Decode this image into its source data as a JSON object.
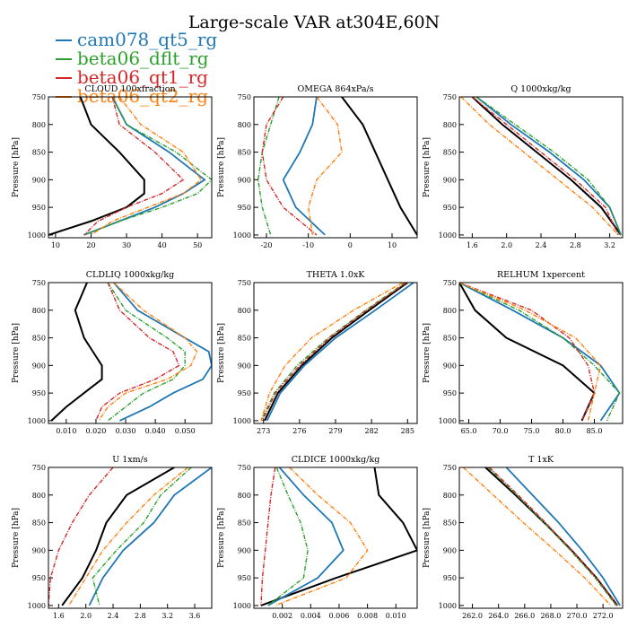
{
  "title": "Large-scale VAR at304E,60N",
  "legend": [
    {
      "name": "cam078_qt5_rg",
      "color": "#1f77b4"
    },
    {
      "name": "beta06_dflt_rg",
      "color": "#2ca02c"
    },
    {
      "name": "beta06_qt1_rg",
      "color": "#d62728"
    },
    {
      "name": "beta06_qt2_rg",
      "color": "#ff7f0e"
    }
  ],
  "series_colors": [
    "#000000",
    "#1f77b4",
    "#2ca02c",
    "#d62728",
    "#ff7f0e"
  ],
  "chart_data": [
    {
      "type": "line",
      "title": "CLOUD 100xfraction",
      "ylabel": "Pressure [hPa]",
      "xlim": [
        8,
        54
      ],
      "ylim": [
        1005,
        750
      ],
      "xticks": [
        10,
        20,
        30,
        40,
        50
      ],
      "xtick_labels": [
        "10",
        "20",
        "30",
        "40",
        "50"
      ],
      "yticks": [
        750,
        800,
        850,
        900,
        950,
        1000
      ],
      "ytick_labels": [
        "750",
        "800",
        "850",
        "900",
        "950",
        "1000"
      ],
      "y": [
        750,
        800,
        850,
        900,
        925,
        950,
        975,
        1000
      ],
      "series": [
        {
          "values": [
            17,
            20,
            28,
            35,
            35,
            30,
            20,
            8
          ]
        },
        {
          "values": [
            26,
            30,
            42,
            52,
            46,
            38,
            28,
            18
          ]
        },
        {
          "values": [
            26,
            30,
            44,
            54,
            50,
            40,
            28,
            18
          ]
        },
        {
          "values": [
            26,
            28,
            38,
            46,
            40,
            30,
            22,
            18
          ]
        },
        {
          "values": [
            28,
            34,
            46,
            51,
            46,
            36,
            26,
            20
          ]
        }
      ]
    },
    {
      "type": "line",
      "title": "OMEGA 864xPa/s",
      "ylabel": "Pressure [hPa]",
      "xlim": [
        -23,
        16
      ],
      "ylim": [
        1005,
        750
      ],
      "xticks": [
        -20,
        -10,
        0,
        10
      ],
      "xtick_labels": [
        "-20",
        "-10",
        "0",
        "10"
      ],
      "yticks": [
        750,
        800,
        850,
        900,
        950,
        1000
      ],
      "ytick_labels": [
        "750",
        "800",
        "850",
        "900",
        "950",
        "1000"
      ],
      "y": [
        750,
        800,
        850,
        900,
        950,
        1000
      ],
      "series": [
        {
          "values": [
            -2,
            3,
            6,
            9,
            12,
            16
          ]
        },
        {
          "values": [
            -8,
            -9,
            -12,
            -16,
            -13,
            -6
          ]
        },
        {
          "values": [
            -17,
            -19,
            -21,
            -22,
            -21,
            -19
          ]
        },
        {
          "values": [
            -16,
            -20,
            -21,
            -20,
            -16,
            -8
          ]
        },
        {
          "values": [
            -8,
            -3,
            -2,
            -8,
            -10,
            -9
          ]
        }
      ]
    },
    {
      "type": "line",
      "title": "Q 1000xkg/kg",
      "ylabel": "Pressure [hPa]",
      "xlim": [
        1.45,
        3.35
      ],
      "ylim": [
        1005,
        750
      ],
      "xticks": [
        1.6,
        2.0,
        2.4,
        2.8,
        3.2
      ],
      "xtick_labels": [
        "1.6",
        "2.0",
        "2.4",
        "2.8",
        "3.2"
      ],
      "yticks": [
        750,
        800,
        850,
        900,
        950,
        1000
      ],
      "ytick_labels": [
        "750",
        "800",
        "850",
        "900",
        "950",
        "1000"
      ],
      "y": [
        750,
        800,
        850,
        900,
        950,
        1000
      ],
      "series": [
        {
          "values": [
            1.6,
            1.95,
            2.35,
            2.75,
            3.1,
            3.33
          ]
        },
        {
          "values": [
            1.65,
            2.05,
            2.5,
            2.9,
            3.2,
            3.33
          ]
        },
        {
          "values": [
            1.65,
            2.1,
            2.55,
            2.95,
            3.2,
            3.33
          ]
        },
        {
          "values": [
            1.6,
            2.0,
            2.4,
            2.8,
            3.15,
            3.3
          ]
        },
        {
          "values": [
            1.47,
            1.8,
            2.2,
            2.6,
            3.0,
            3.3
          ]
        }
      ]
    },
    {
      "type": "line",
      "title": "CLDLIQ 1000xkg/kg",
      "ylabel": "Pressure [hPa]",
      "xlim": [
        0.004,
        0.059
      ],
      "ylim": [
        1005,
        750
      ],
      "xticks": [
        0.01,
        0.02,
        0.03,
        0.04,
        0.05
      ],
      "xtick_labels": [
        "0.010",
        "0.020",
        "0.030",
        "0.040",
        "0.050"
      ],
      "yticks": [
        750,
        800,
        850,
        900,
        950,
        1000
      ],
      "ytick_labels": [
        "750",
        "800",
        "850",
        "900",
        "950",
        "1000"
      ],
      "y": [
        750,
        800,
        850,
        875,
        900,
        925,
        950,
        975,
        1000
      ],
      "series": [
        {
          "values": [
            0.017,
            0.013,
            0.016,
            0.019,
            0.022,
            0.022,
            0.016,
            0.01,
            0.005
          ]
        },
        {
          "values": [
            0.026,
            0.034,
            0.05,
            0.058,
            0.059,
            0.056,
            0.046,
            0.038,
            0.028
          ]
        },
        {
          "values": [
            0.024,
            0.03,
            0.044,
            0.05,
            0.05,
            0.046,
            0.036,
            0.03,
            0.024
          ]
        },
        {
          "values": [
            0.024,
            0.028,
            0.038,
            0.046,
            0.048,
            0.04,
            0.028,
            0.022,
            0.02
          ]
        },
        {
          "values": [
            0.026,
            0.036,
            0.05,
            0.054,
            0.052,
            0.044,
            0.03,
            0.024,
            0.021
          ]
        }
      ]
    },
    {
      "type": "line",
      "title": "THETA 1.0xK",
      "ylabel": "Pressure [hPa]",
      "xlim": [
        272.2,
        285.8
      ],
      "ylim": [
        1005,
        750
      ],
      "xticks": [
        273,
        276,
        279,
        282,
        285
      ],
      "xtick_labels": [
        "273",
        "276",
        "279",
        "282",
        "285"
      ],
      "yticks": [
        750,
        800,
        850,
        900,
        950,
        1000
      ],
      "ytick_labels": [
        "750",
        "800",
        "850",
        "900",
        "950",
        "1000"
      ],
      "y": [
        750,
        800,
        850,
        900,
        950,
        1000
      ],
      "series": [
        {
          "values": [
            285.0,
            281.8,
            278.7,
            276.2,
            274.2,
            273.1
          ]
        },
        {
          "values": [
            285.5,
            282.3,
            279.0,
            276.4,
            274.4,
            273.3
          ]
        },
        {
          "values": [
            284.8,
            281.5,
            278.4,
            275.8,
            273.9,
            272.8
          ]
        },
        {
          "values": [
            284.9,
            281.6,
            278.5,
            276.0,
            274.0,
            272.9
          ]
        },
        {
          "values": [
            284.6,
            280.5,
            277.0,
            274.8,
            273.5,
            272.8
          ]
        }
      ]
    },
    {
      "type": "line",
      "title": "RELHUM 1xpercent",
      "ylabel": "Pressure [hPa]",
      "xlim": [
        63.5,
        89.5
      ],
      "ylim": [
        1005,
        750
      ],
      "xticks": [
        65,
        70,
        75,
        80,
        85
      ],
      "xtick_labels": [
        "65.0",
        "70.0",
        "75.0",
        "80.0",
        "85.0"
      ],
      "yticks": [
        750,
        800,
        850,
        900,
        950,
        1000
      ],
      "ytick_labels": [
        "750",
        "800",
        "850",
        "900",
        "950",
        "1000"
      ],
      "y": [
        750,
        800,
        850,
        900,
        950,
        1000
      ],
      "series": [
        {
          "values": [
            63.5,
            66,
            71,
            80,
            85,
            83
          ]
        },
        {
          "values": [
            63.5,
            72,
            80,
            86,
            89,
            86
          ]
        },
        {
          "values": [
            63.5,
            73,
            80,
            85,
            89,
            87
          ]
        },
        {
          "values": [
            63.5,
            75,
            81,
            84,
            85,
            83
          ]
        },
        {
          "values": [
            63.5,
            74,
            82,
            86,
            85,
            84
          ]
        }
      ]
    },
    {
      "type": "line",
      "title": "U 1xm/s",
      "ylabel": "Pressure [hPa]",
      "xlim": [
        1.45,
        3.85
      ],
      "ylim": [
        1005,
        750
      ],
      "xticks": [
        1.6,
        2.0,
        2.4,
        2.8,
        3.2,
        3.6
      ],
      "xtick_labels": [
        "1.6",
        "2.0",
        "2.4",
        "2.8",
        "3.2",
        "3.6"
      ],
      "yticks": [
        750,
        800,
        850,
        900,
        950,
        1000
      ],
      "ytick_labels": [
        "750",
        "800",
        "850",
        "900",
        "950",
        "1000"
      ],
      "y": [
        750,
        800,
        850,
        900,
        950,
        1000
      ],
      "series": [
        {
          "values": [
            3.3,
            2.6,
            2.3,
            2.15,
            1.95,
            1.65
          ]
        },
        {
          "values": [
            3.85,
            3.3,
            3.0,
            2.55,
            2.25,
            2.05
          ]
        },
        {
          "values": [
            3.55,
            3.1,
            2.85,
            2.45,
            2.1,
            2.2
          ]
        },
        {
          "values": [
            2.4,
            2.05,
            1.8,
            1.6,
            1.48,
            1.45
          ]
        },
        {
          "values": [
            3.5,
            3.0,
            2.6,
            2.25,
            2.0,
            1.75
          ]
        }
      ]
    },
    {
      "type": "line",
      "title": "CLDICE 1000xkg/kg",
      "ylabel": "Pressure [hPa]",
      "xlim": [
        0.0,
        0.0115
      ],
      "ylim": [
        1005,
        750
      ],
      "xticks": [
        0.002,
        0.004,
        0.006,
        0.008,
        0.01
      ],
      "xtick_labels": [
        "0.002",
        "0.004",
        "0.006",
        "0.008",
        "0.010"
      ],
      "yticks": [
        750,
        800,
        850,
        900,
        950,
        1000
      ],
      "ytick_labels": [
        "750",
        "800",
        "850",
        "900",
        "950",
        "1000"
      ],
      "y": [
        750,
        800,
        850,
        900,
        950,
        1000
      ],
      "series": [
        {
          "values": [
            0.0085,
            0.0088,
            0.0105,
            0.0115,
            0.0058,
            0.0005
          ]
        },
        {
          "values": [
            0.0018,
            0.0035,
            0.0055,
            0.0063,
            0.0045,
            0.001
          ]
        },
        {
          "values": [
            0.0016,
            0.0024,
            0.0033,
            0.0038,
            0.0035,
            0.001
          ]
        },
        {
          "values": [
            0.0015,
            0.0012,
            0.001,
            0.0008,
            0.0006,
            0.0005
          ]
        },
        {
          "values": [
            0.0025,
            0.0045,
            0.0068,
            0.008,
            0.0065,
            0.0015
          ]
        }
      ]
    },
    {
      "type": "line",
      "title": "T 1xK",
      "ylabel": "Pressure [hPa]",
      "xlim": [
        261.0,
        273.5
      ],
      "ylim": [
        1005,
        750
      ],
      "xticks": [
        262,
        264,
        266,
        268,
        270,
        272
      ],
      "xtick_labels": [
        "262.0",
        "264.0",
        "266.0",
        "268.0",
        "270.0",
        "272.0"
      ],
      "yticks": [
        750,
        800,
        850,
        900,
        950,
        1000
      ],
      "ytick_labels": [
        "750",
        "800",
        "850",
        "900",
        "950",
        "1000"
      ],
      "y": [
        750,
        800,
        850,
        900,
        950,
        1000
      ],
      "series": [
        {
          "values": [
            263.0,
            265.3,
            267.5,
            269.6,
            271.5,
            273.1
          ]
        },
        {
          "values": [
            264.6,
            266.6,
            268.6,
            270.4,
            272.0,
            273.3
          ]
        },
        {
          "values": [
            263.2,
            265.4,
            267.5,
            269.5,
            271.4,
            273.0
          ]
        },
        {
          "values": [
            263.3,
            265.5,
            267.6,
            269.6,
            271.5,
            273.1
          ]
        },
        {
          "values": [
            261.3,
            263.6,
            265.9,
            268.3,
            270.6,
            272.6
          ]
        }
      ]
    }
  ]
}
